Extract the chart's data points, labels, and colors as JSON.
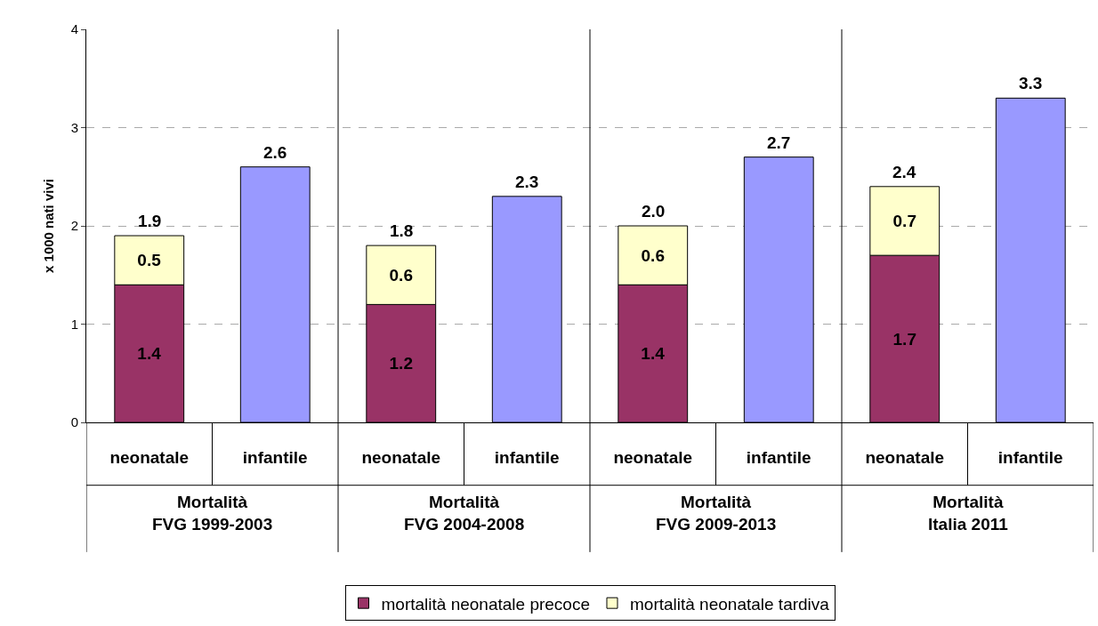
{
  "chart_data": {
    "type": "bar",
    "stacked": true,
    "ylabel": "x 1000 nati vivi",
    "categories": [
      "neonatale",
      "infantile",
      "neonatale",
      "infantile",
      "neonatale",
      "infantile",
      "neonatale",
      "infantile"
    ],
    "series": [
      {
        "name": "mortalità neonatale precoce",
        "color": "#993366",
        "values": [
          1.4,
          null,
          1.2,
          null,
          1.4,
          null,
          1.7,
          null
        ],
        "value_labels": [
          "1.4",
          null,
          "1.2",
          null,
          "1.4",
          null,
          "1.7",
          null
        ]
      },
      {
        "name": "mortalità neonatale tardiva",
        "color": "#ffffcc",
        "values": [
          0.5,
          null,
          0.6,
          null,
          0.6,
          null,
          0.7,
          null
        ],
        "value_labels": [
          "0.5",
          null,
          "0.6",
          null,
          "0.6",
          null,
          "0.7",
          null
        ]
      },
      {
        "color": "#9999ff",
        "values": [
          null,
          2.6,
          null,
          2.3,
          null,
          2.7,
          null,
          3.3
        ]
      }
    ],
    "totals": [
      "1.9",
      "2.6",
      "1.8",
      "2.3",
      "2.0",
      "2.7",
      "2.4",
      "3.3"
    ],
    "annotations": [
      "Mortalità\nFVG 1999-2003",
      "Mortalità\nFVG 2004-2008",
      "Mortalità\nFVG 2009-2013",
      "Mortalità\nItalia 2011"
    ],
    "ylim": [
      0,
      4
    ],
    "yticks": [
      0,
      1,
      2,
      3,
      4
    ],
    "grid": "y",
    "legend": "bottom"
  }
}
